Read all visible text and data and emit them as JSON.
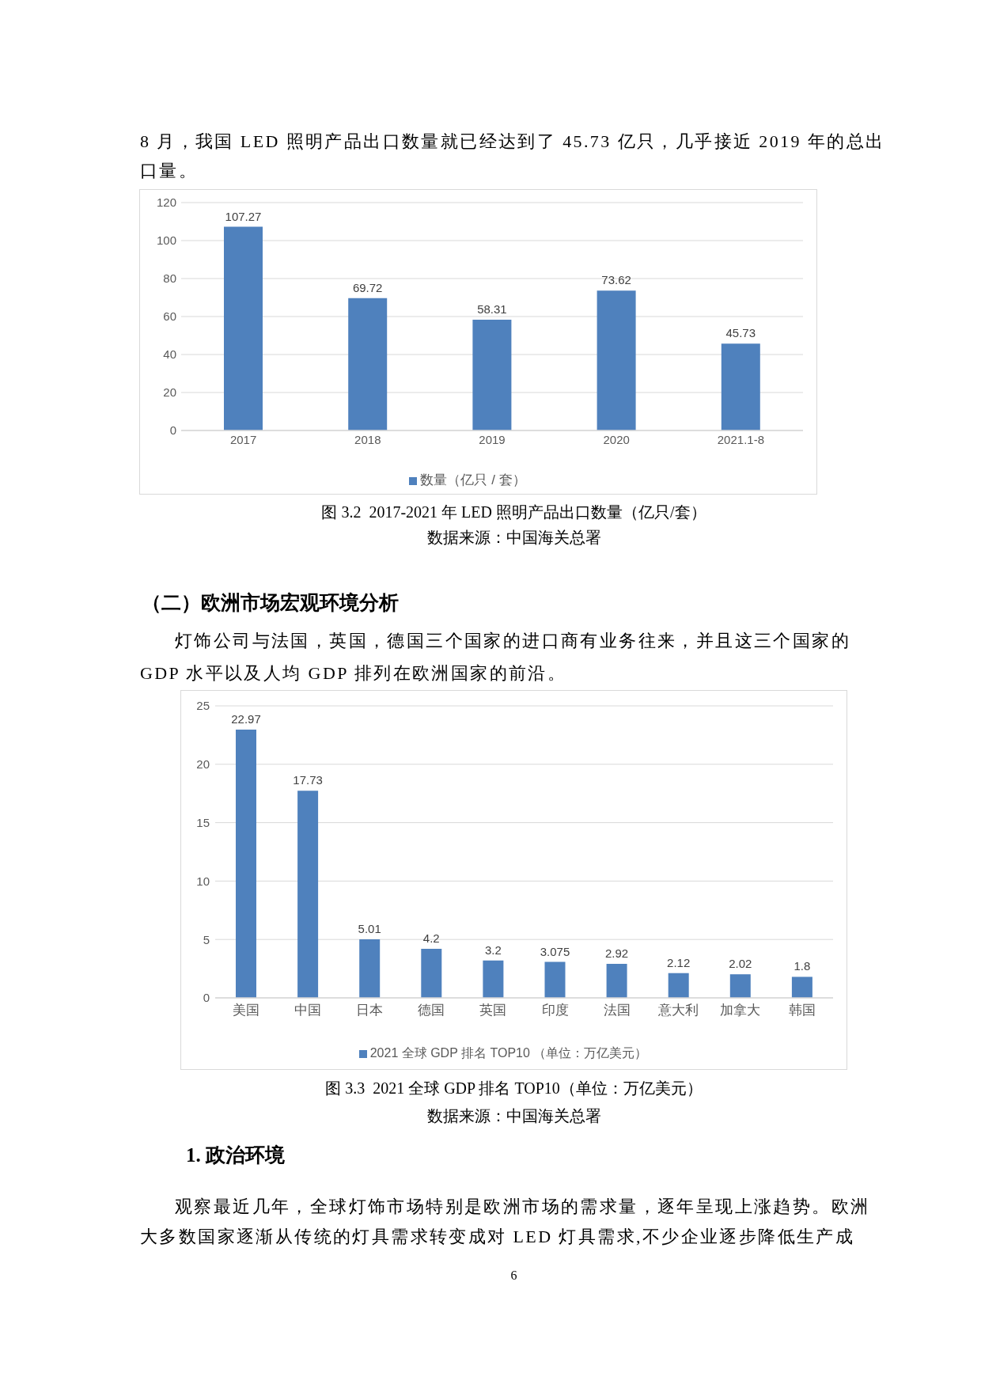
{
  "chart_data": [
    {
      "type": "bar",
      "annotations": [
        "8 月，我国 LED 照明产品出口数量就已经达到了 45.73 亿只，几乎接近 2019 年的总出口量。",
        "图 3.2  2017-2021 年 LED 照明产品出口数量（亿只/套）",
        "数据来源：中国海关总署"
      ],
      "categories": [
        "2017",
        "2018",
        "2019",
        "2020",
        "2021.1-8"
      ],
      "series": [
        {
          "name": "数量（亿只 / 套）",
          "color": "#4f81bd",
          "values": [
            107.27,
            69.72,
            58.31,
            73.62,
            45.73
          ]
        }
      ],
      "ylim": [
        0,
        120
      ],
      "yticks": [
        0,
        20,
        40,
        60,
        80,
        100,
        120
      ],
      "grid": "y",
      "legend": "bottom",
      "data_labels": true
    },
    {
      "type": "bar",
      "annotations": [
        "（二）欧洲市场宏观环境分析",
        "灯饰公司与法国，英国，德国三个国家的进口商有业务往来，并且这三个国家的 GDP 水平以及人均 GDP 排列在欧洲国家的前沿。",
        "图 3.3  2021 全球 GDP 排名 TOP10（单位：万亿美元）",
        "数据来源：中国海关总署",
        "1. 政治环境",
        "观察最近几年，全球灯饰市场特别是欧洲市场的需求量，逐年呈现上涨趋势。欧洲大多数国家逐渐从传统的灯具需求转变成对 LED 灯具需求,不少企业逐步降低生产成",
        "6"
      ],
      "categories": [
        "美国",
        "中国",
        "日本",
        "德国",
        "英国",
        "印度",
        "法国",
        "意大利",
        "加拿大",
        "韩国"
      ],
      "series": [
        {
          "name": "2021 全球 GDP 排名 TOP10 （单位：万亿美元）",
          "color": "#4f81bd",
          "values": [
            22.97,
            17.73,
            5.01,
            4.2,
            3.2,
            3.075,
            2.92,
            2.12,
            2.02,
            1.8
          ]
        }
      ],
      "ylim": [
        0,
        25
      ],
      "yticks": [
        0,
        5,
        10,
        15,
        20,
        25
      ],
      "grid": "y",
      "legend": "bottom",
      "data_labels": true
    }
  ]
}
